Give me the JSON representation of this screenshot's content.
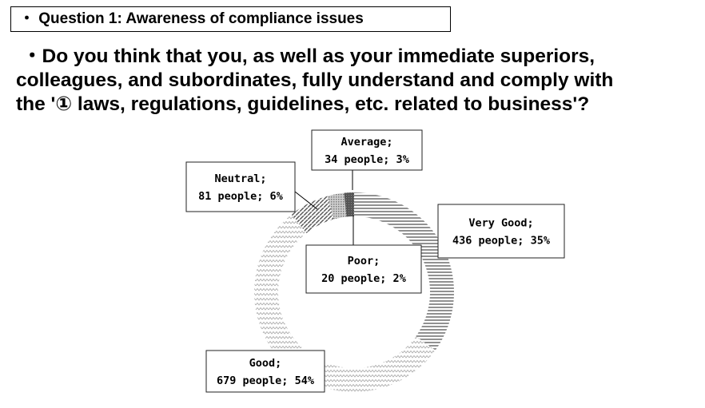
{
  "header": {
    "question_tag": "・ Question 1: Awareness of compliance issues",
    "question_lines": [
      "・Do you think that you, as well as your immediate superiors,",
      "colleagues, and subordinates, fully understand and comply with",
      "the '① laws, regulations, guidelines, etc. related to business'?"
    ]
  },
  "chart_data": {
    "type": "pie",
    "variant": "donut",
    "title": "",
    "unit": "people",
    "slices": [
      {
        "name": "Very Good",
        "value": 436,
        "percent": 35,
        "label": [
          "Very Good;",
          "436 people; 35%"
        ],
        "color": "#7a7a7a",
        "pattern": "horizontal-lines"
      },
      {
        "name": "Good",
        "value": 679,
        "percent": 54,
        "label": [
          "Good;",
          "679 people; 54%"
        ],
        "color": "#b8b8b8",
        "pattern": "zigzag"
      },
      {
        "name": "Neutral",
        "value": 81,
        "percent": 6,
        "label": [
          "Neutral;",
          "81 people; 6%"
        ],
        "color": "#6a6a6a",
        "pattern": "diagonal"
      },
      {
        "name": "Average",
        "value": 34,
        "percent": 3,
        "label": [
          "Average;",
          "34 people; 3%"
        ],
        "color": "#9a9a9a",
        "pattern": "dots"
      },
      {
        "name": "Poor",
        "value": 20,
        "percent": 2,
        "label": [
          "Poor;",
          "20 people; 2%"
        ],
        "color": "#555555",
        "pattern": "solid-dark"
      }
    ]
  }
}
